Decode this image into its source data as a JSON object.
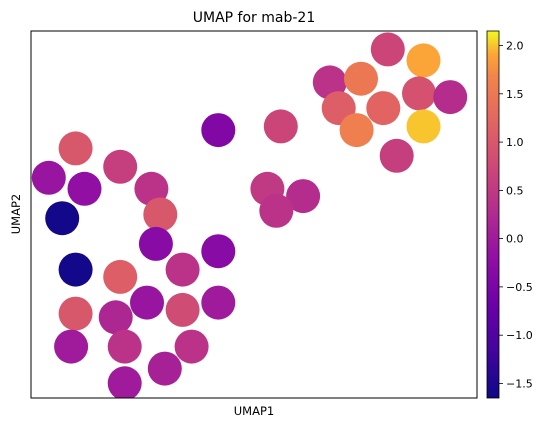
{
  "chart_data": {
    "type": "scatter",
    "title": "UMAP for mab-21",
    "xlabel": "UMAP1",
    "ylabel": "UMAP2",
    "xlim": [
      0,
      100
    ],
    "ylim": [
      0,
      100
    ],
    "grid": false,
    "colormap": "plasma",
    "colorbar": {
      "range": [
        -1.65,
        2.15
      ],
      "ticks": [
        -1.5,
        -1.0,
        -0.5,
        0.0,
        0.5,
        1.0,
        1.5,
        2.0
      ],
      "tick_labels": [
        "−1.5",
        "−1.0",
        "−0.5",
        "0.0",
        "0.5",
        "1.0",
        "1.5",
        "2.0"
      ]
    },
    "points": [
      {
        "x": 80.0,
        "y": 95.0,
        "value": 0.7
      },
      {
        "x": 88.0,
        "y": 92.0,
        "value": 1.9
      },
      {
        "x": 67.0,
        "y": 86.0,
        "value": 0.4
      },
      {
        "x": 74.0,
        "y": 87.0,
        "value": 1.5
      },
      {
        "x": 87.0,
        "y": 83.0,
        "value": 0.9
      },
      {
        "x": 94.0,
        "y": 82.0,
        "value": 0.3
      },
      {
        "x": 69.0,
        "y": 79.0,
        "value": 1.1
      },
      {
        "x": 79.0,
        "y": 79.0,
        "value": 1.2
      },
      {
        "x": 73.0,
        "y": 73.0,
        "value": 1.6
      },
      {
        "x": 88.0,
        "y": 74.0,
        "value": 2.0
      },
      {
        "x": 82.0,
        "y": 66.0,
        "value": 0.6
      },
      {
        "x": 56.0,
        "y": 74.0,
        "value": 0.7
      },
      {
        "x": 42.0,
        "y": 73.0,
        "value": -0.4
      },
      {
        "x": 10.0,
        "y": 68.0,
        "value": 1.0
      },
      {
        "x": 20.0,
        "y": 63.0,
        "value": 0.6
      },
      {
        "x": 4.0,
        "y": 60.0,
        "value": -0.1
      },
      {
        "x": 12.0,
        "y": 57.0,
        "value": -0.2
      },
      {
        "x": 27.0,
        "y": 57.0,
        "value": 0.4
      },
      {
        "x": 53.0,
        "y": 57.0,
        "value": 0.5
      },
      {
        "x": 61.0,
        "y": 55.0,
        "value": 0.3
      },
      {
        "x": 55.0,
        "y": 51.0,
        "value": 0.4
      },
      {
        "x": 7.0,
        "y": 49.0,
        "value": -1.6
      },
      {
        "x": 29.0,
        "y": 50.0,
        "value": 1.0
      },
      {
        "x": 28.0,
        "y": 42.0,
        "value": -0.3
      },
      {
        "x": 42.0,
        "y": 40.0,
        "value": -0.3
      },
      {
        "x": 10.0,
        "y": 35.0,
        "value": -1.6
      },
      {
        "x": 20.0,
        "y": 33.0,
        "value": 1.1
      },
      {
        "x": 34.0,
        "y": 35.0,
        "value": 0.4
      },
      {
        "x": 26.0,
        "y": 26.0,
        "value": -0.1
      },
      {
        "x": 42.0,
        "y": 26.0,
        "value": 0.0
      },
      {
        "x": 10.0,
        "y": 23.0,
        "value": 1.0
      },
      {
        "x": 19.0,
        "y": 22.0,
        "value": 0.2
      },
      {
        "x": 34.0,
        "y": 24.0,
        "value": 0.8
      },
      {
        "x": 9.0,
        "y": 14.0,
        "value": 0.0
      },
      {
        "x": 21.0,
        "y": 14.0,
        "value": 0.4
      },
      {
        "x": 36.0,
        "y": 14.0,
        "value": 0.4
      },
      {
        "x": 30.0,
        "y": 8.0,
        "value": 0.1
      },
      {
        "x": 21.0,
        "y": 4.0,
        "value": 0.0
      }
    ]
  }
}
